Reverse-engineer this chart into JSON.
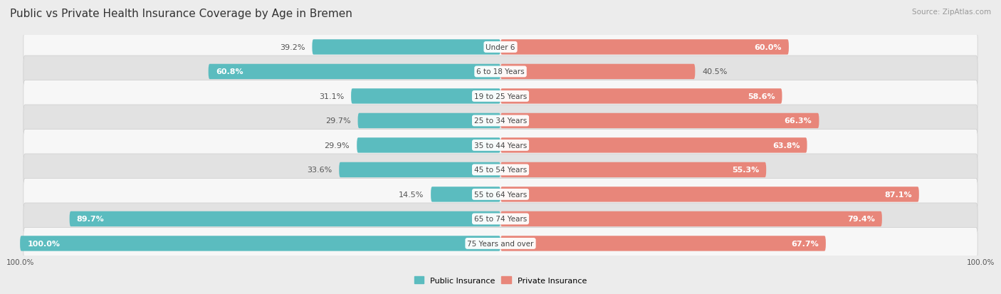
{
  "title": "Public vs Private Health Insurance Coverage by Age in Bremen",
  "source": "Source: ZipAtlas.com",
  "categories": [
    "Under 6",
    "6 to 18 Years",
    "19 to 25 Years",
    "25 to 34 Years",
    "35 to 44 Years",
    "45 to 54 Years",
    "55 to 64 Years",
    "65 to 74 Years",
    "75 Years and over"
  ],
  "public_values": [
    39.2,
    60.8,
    31.1,
    29.7,
    29.9,
    33.6,
    14.5,
    89.7,
    100.0
  ],
  "private_values": [
    60.0,
    40.5,
    58.6,
    66.3,
    63.8,
    55.3,
    87.1,
    79.4,
    67.7
  ],
  "public_color": "#5bbcbf",
  "private_color": "#e8867a",
  "background_color": "#ececec",
  "row_bg_light": "#f7f7f7",
  "row_bg_dark": "#e2e2e2",
  "title_fontsize": 11,
  "label_fontsize": 8,
  "source_fontsize": 7.5,
  "legend_fontsize": 8,
  "axis_label_fontsize": 7.5
}
